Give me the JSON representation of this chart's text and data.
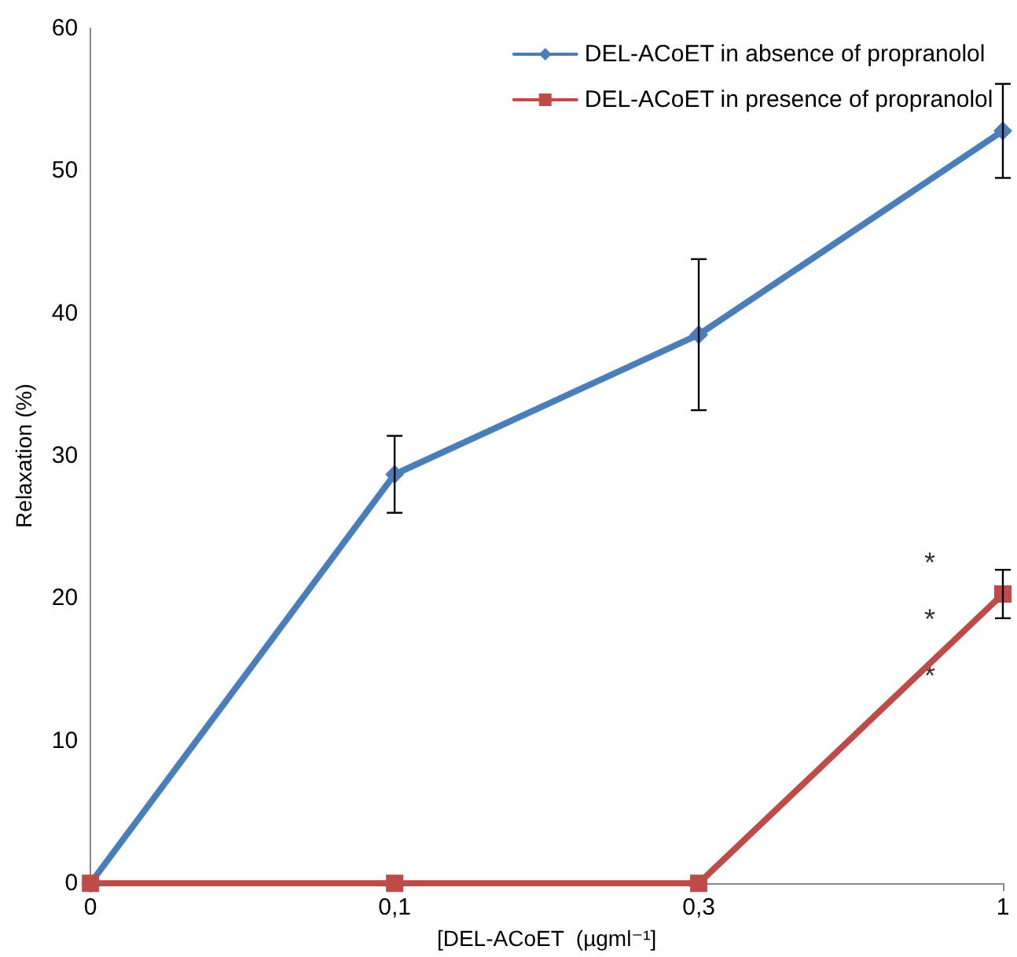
{
  "chart_data": {
    "type": "line",
    "xlabel": "[DEL-ACoET  (µgml⁻¹]",
    "ylabel": "Relaxation (%)",
    "categories": [
      "0",
      "0,1",
      "0,3",
      "1"
    ],
    "series": [
      {
        "name": "DEL-ACoET in absence of propranolol",
        "color": "#4a7ebb",
        "marker": "diamond",
        "values": [
          0,
          28.7,
          38.5,
          52.8
        ],
        "errors": [
          null,
          2.7,
          5.3,
          3.3
        ]
      },
      {
        "name": "DEL-ACoET in presence of propranolol",
        "color": "#be4b48",
        "marker": "square",
        "values": [
          0,
          0,
          0,
          20.3
        ],
        "errors": [
          null,
          null,
          null,
          1.7
        ]
      }
    ],
    "ylim": [
      0,
      60
    ],
    "yticks": [
      0,
      10,
      20,
      30,
      40,
      50,
      60
    ],
    "grid": false,
    "legend": "top right",
    "line_style": "solid",
    "annotations": [
      "***"
    ]
  }
}
